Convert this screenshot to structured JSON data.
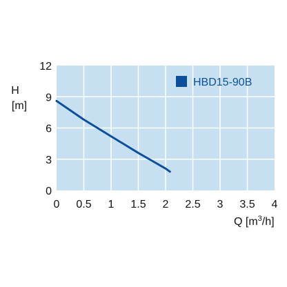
{
  "chart_data": {
    "type": "line",
    "title": "",
    "ylabel_line1": "H",
    "ylabel_line2": "[m]",
    "xlabel_main": "Q [m",
    "xlabel_sup": "3",
    "xlabel_tail": "/h]",
    "xlim": [
      0,
      4
    ],
    "ylim": [
      0,
      12
    ],
    "xticks": [
      0,
      0.5,
      1,
      1.5,
      2,
      2.5,
      3,
      3.5,
      4
    ],
    "xtick_labels": [
      "0",
      "0.5",
      "1",
      "1.5",
      "2",
      "2.5",
      "3",
      "3.5",
      "4"
    ],
    "yticks": [
      0,
      3,
      6,
      9,
      12
    ],
    "ytick_labels": [
      "0",
      "3",
      "6",
      "9",
      "12"
    ],
    "grid": true,
    "legend_position": "top-right",
    "colors": {
      "plot_background": "#c6e0f1",
      "grid": "#ffffff",
      "series": "#0b4f9c"
    },
    "series": [
      {
        "name": "HBD15-90B",
        "x": [
          0,
          0.25,
          0.5,
          0.75,
          1.0,
          1.25,
          1.5,
          1.75,
          2.0,
          2.08
        ],
        "y": [
          8.6,
          7.7,
          6.8,
          6.0,
          5.2,
          4.4,
          3.6,
          2.85,
          2.1,
          1.8
        ]
      }
    ]
  }
}
